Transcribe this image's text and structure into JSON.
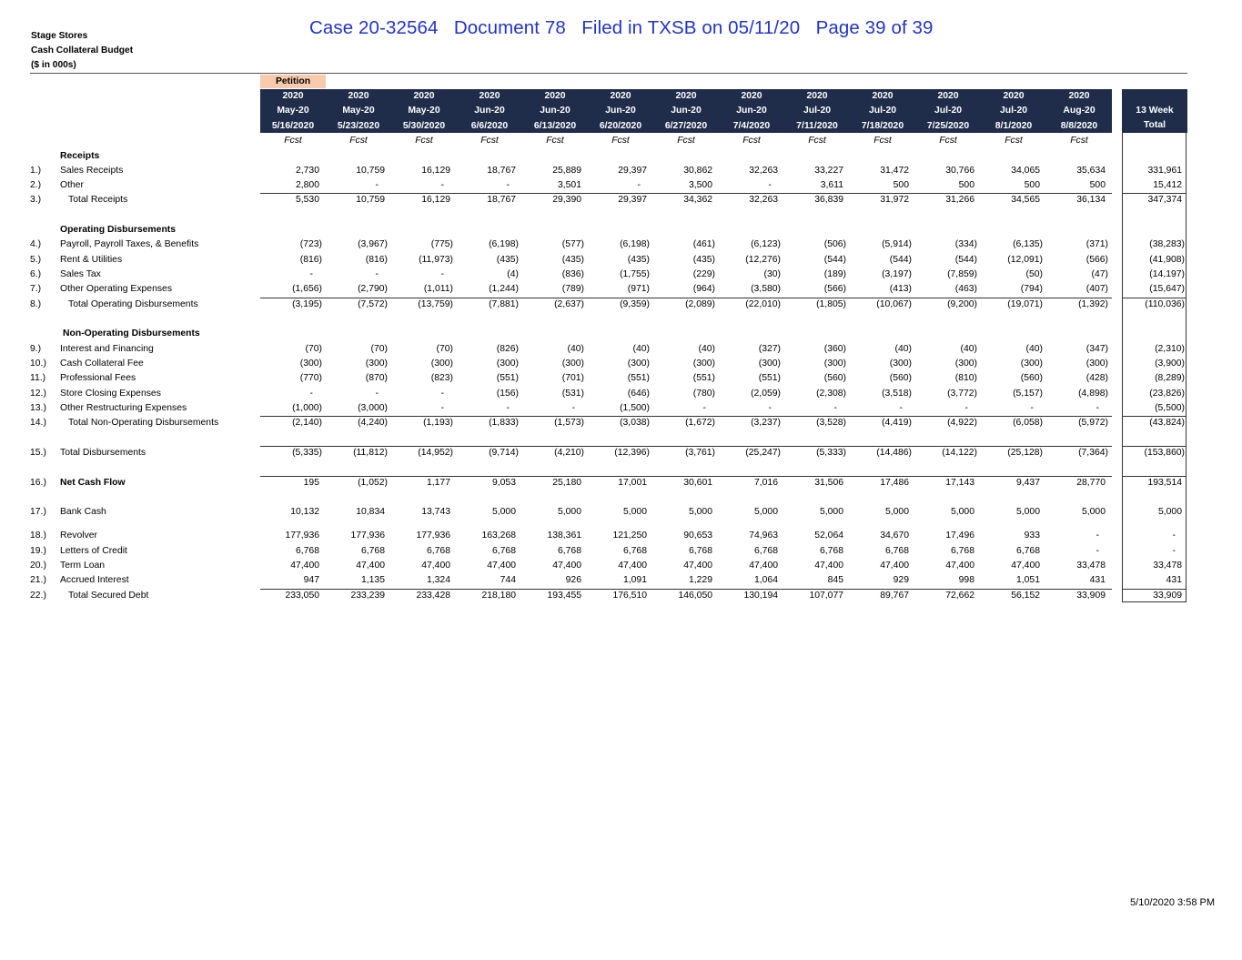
{
  "stamp": "Case 20-32564   Document 78   Filed in TXSB on 05/11/20   Page 39 of 39",
  "title": {
    "company": "Stage Stores",
    "report": "Cash Collateral Budget",
    "units": "($ in 000s)"
  },
  "petition_label": "Petition",
  "header_color": "#1f2d4b",
  "petition_color": "#f8cbad",
  "columns": [
    {
      "year": "2020",
      "month": "May-20",
      "date": "5/16/2020",
      "type": "Fcst"
    },
    {
      "year": "2020",
      "month": "May-20",
      "date": "5/23/2020",
      "type": "Fcst"
    },
    {
      "year": "2020",
      "month": "May-20",
      "date": "5/30/2020",
      "type": "Fcst"
    },
    {
      "year": "2020",
      "month": "Jun-20",
      "date": "6/6/2020",
      "type": "Fcst"
    },
    {
      "year": "2020",
      "month": "Jun-20",
      "date": "6/13/2020",
      "type": "Fcst"
    },
    {
      "year": "2020",
      "month": "Jun-20",
      "date": "6/20/2020",
      "type": "Fcst"
    },
    {
      "year": "2020",
      "month": "Jun-20",
      "date": "6/27/2020",
      "type": "Fcst"
    },
    {
      "year": "2020",
      "month": "Jun-20",
      "date": "7/4/2020",
      "type": "Fcst"
    },
    {
      "year": "2020",
      "month": "Jul-20",
      "date": "7/11/2020",
      "type": "Fcst"
    },
    {
      "year": "2020",
      "month": "Jul-20",
      "date": "7/18/2020",
      "type": "Fcst"
    },
    {
      "year": "2020",
      "month": "Jul-20",
      "date": "7/25/2020",
      "type": "Fcst"
    },
    {
      "year": "2020",
      "month": "Jul-20",
      "date": "8/1/2020",
      "type": "Fcst"
    },
    {
      "year": "2020",
      "month": "Aug-20",
      "date": "8/8/2020",
      "type": "Fcst"
    }
  ],
  "total_header": {
    "line1": "13 Week",
    "line2": "Total"
  },
  "rows": [
    {
      "kind": "section",
      "label": "Receipts"
    },
    {
      "num": "1.)",
      "label": "Sales Receipts",
      "values": [
        "2,730",
        "10,759",
        "16,129",
        "18,767",
        "25,889",
        "29,397",
        "30,862",
        "32,263",
        "33,227",
        "31,472",
        "30,766",
        "34,065",
        "35,634"
      ],
      "total": "331,961"
    },
    {
      "num": "2.)",
      "label": "Other",
      "values": [
        "2,800",
        "-",
        "-",
        "-",
        "3,501",
        "-",
        "3,500",
        "-",
        "3,611",
        "500",
        "500",
        "500",
        "500"
      ],
      "total": "15,412"
    },
    {
      "num": "3.)",
      "label": "Total Receipts",
      "indent": true,
      "rule": true,
      "values": [
        "5,530",
        "10,759",
        "16,129",
        "18,767",
        "29,390",
        "29,397",
        "34,362",
        "32,263",
        "36,839",
        "31,972",
        "31,266",
        "34,565",
        "36,134"
      ],
      "total": "347,374"
    },
    {
      "kind": "blank"
    },
    {
      "kind": "section",
      "label": "Operating Disbursements"
    },
    {
      "num": "4.)",
      "label": "Payroll, Payroll Taxes, & Benefits",
      "values": [
        "(723)",
        "(3,967)",
        "(775)",
        "(6,198)",
        "(577)",
        "(6,198)",
        "(461)",
        "(6,123)",
        "(506)",
        "(5,914)",
        "(334)",
        "(6,135)",
        "(371)"
      ],
      "total": "(38,283)"
    },
    {
      "num": "5.)",
      "label": "Rent & Utilities",
      "values": [
        "(816)",
        "(816)",
        "(11,973)",
        "(435)",
        "(435)",
        "(435)",
        "(435)",
        "(12,276)",
        "(544)",
        "(544)",
        "(544)",
        "(12,091)",
        "(566)"
      ],
      "total": "(41,908)"
    },
    {
      "num": "6.)",
      "label": "Sales Tax",
      "values": [
        "-",
        "-",
        "-",
        "(4)",
        "(836)",
        "(1,755)",
        "(229)",
        "(30)",
        "(189)",
        "(3,197)",
        "(7,859)",
        "(50)",
        "(47)"
      ],
      "total": "(14,197)"
    },
    {
      "num": "7.)",
      "label": "Other Operating Expenses",
      "values": [
        "(1,656)",
        "(2,790)",
        "(1,011)",
        "(1,244)",
        "(789)",
        "(971)",
        "(964)",
        "(3,580)",
        "(566)",
        "(413)",
        "(463)",
        "(794)",
        "(407)"
      ],
      "total": "(15,647)"
    },
    {
      "num": "8.)",
      "label": "Total Operating Disbursements",
      "indent": true,
      "rule": true,
      "values": [
        "(3,195)",
        "(7,572)",
        "(13,759)",
        "(7,881)",
        "(2,637)",
        "(9,359)",
        "(2,089)",
        "(22,010)",
        "(1,805)",
        "(10,067)",
        "(9,200)",
        "(19,071)",
        "(1,392)"
      ],
      "total": "(110,036)"
    },
    {
      "kind": "blank"
    },
    {
      "kind": "section",
      "label": "Non-Operating Disbursements"
    },
    {
      "num": "9.)",
      "label": "Interest and Financing",
      "values": [
        "(70)",
        "(70)",
        "(70)",
        "(826)",
        "(40)",
        "(40)",
        "(40)",
        "(327)",
        "(360)",
        "(40)",
        "(40)",
        "(40)",
        "(347)"
      ],
      "total": "(2,310)"
    },
    {
      "num": "10.)",
      "label": "Cash Collateral Fee",
      "values": [
        "(300)",
        "(300)",
        "(300)",
        "(300)",
        "(300)",
        "(300)",
        "(300)",
        "(300)",
        "(300)",
        "(300)",
        "(300)",
        "(300)",
        "(300)"
      ],
      "total": "(3,900)"
    },
    {
      "num": "11.)",
      "label": "Professional Fees",
      "values": [
        "(770)",
        "(870)",
        "(823)",
        "(551)",
        "(701)",
        "(551)",
        "(551)",
        "(551)",
        "(560)",
        "(560)",
        "(810)",
        "(560)",
        "(428)"
      ],
      "total": "(8,289)"
    },
    {
      "num": "12.)",
      "label": "Store Closing Expenses",
      "values": [
        "-",
        "-",
        "-",
        "(156)",
        "(531)",
        "(646)",
        "(780)",
        "(2,059)",
        "(2,308)",
        "(3,518)",
        "(3,772)",
        "(5,157)",
        "(4,898)"
      ],
      "total": "(23,826)"
    },
    {
      "num": "13.)",
      "label": "Other Restructuring Expenses",
      "values": [
        "(1,000)",
        "(3,000)",
        "-",
        "-",
        "-",
        "(1,500)",
        "-",
        "-",
        "-",
        "-",
        "-",
        "-",
        "-"
      ],
      "total": "(5,500)"
    },
    {
      "num": "14.)",
      "label": "Total Non-Operating Disbursements",
      "indent": true,
      "rule": true,
      "values": [
        "(2,140)",
        "(4,240)",
        "(1,193)",
        "(1,833)",
        "(1,573)",
        "(3,038)",
        "(1,672)",
        "(3,237)",
        "(3,528)",
        "(4,419)",
        "(4,922)",
        "(6,058)",
        "(5,972)"
      ],
      "total": "(43,824)"
    },
    {
      "kind": "blank"
    },
    {
      "num": "15.)",
      "label": "Total Disbursements",
      "rule": true,
      "values": [
        "(5,335)",
        "(11,812)",
        "(14,952)",
        "(9,714)",
        "(4,210)",
        "(12,396)",
        "(3,761)",
        "(25,247)",
        "(5,333)",
        "(14,486)",
        "(14,122)",
        "(25,128)",
        "(7,364)"
      ],
      "total": "(153,860)"
    },
    {
      "kind": "blank"
    },
    {
      "num": "16.)",
      "label": "Net Cash Flow",
      "bold": true,
      "rule": true,
      "values": [
        "195",
        "(1,052)",
        "1,177",
        "9,053",
        "25,180",
        "17,001",
        "30,601",
        "7,016",
        "31,506",
        "17,486",
        "17,143",
        "9,437",
        "28,770"
      ],
      "total": "193,514"
    },
    {
      "kind": "blank"
    },
    {
      "num": "17.)",
      "label": "Bank Cash",
      "values": [
        "10,132",
        "10,834",
        "13,743",
        "5,000",
        "5,000",
        "5,000",
        "5,000",
        "5,000",
        "5,000",
        "5,000",
        "5,000",
        "5,000",
        "5,000"
      ],
      "total": "5,000"
    },
    {
      "kind": "spacer"
    },
    {
      "num": "18.)",
      "label": "Revolver",
      "values": [
        "177,936",
        "177,936",
        "177,936",
        "163,268",
        "138,361",
        "121,250",
        "90,653",
        "74,963",
        "52,064",
        "34,670",
        "17,496",
        "933",
        "-"
      ],
      "total": "-"
    },
    {
      "num": "19.)",
      "label": "Letters of Credit",
      "values": [
        "6,768",
        "6,768",
        "6,768",
        "6,768",
        "6,768",
        "6,768",
        "6,768",
        "6,768",
        "6,768",
        "6,768",
        "6,768",
        "6,768",
        "-"
      ],
      "total": "-"
    },
    {
      "num": "20.)",
      "label": "Term Loan",
      "values": [
        "47,400",
        "47,400",
        "47,400",
        "47,400",
        "47,400",
        "47,400",
        "47,400",
        "47,400",
        "47,400",
        "47,400",
        "47,400",
        "47,400",
        "33,478"
      ],
      "total": "33,478"
    },
    {
      "num": "21.)",
      "label": "Accrued Interest",
      "values": [
        "947",
        "1,135",
        "1,324",
        "744",
        "926",
        "1,091",
        "1,229",
        "1,064",
        "845",
        "929",
        "998",
        "1,051",
        "431"
      ],
      "total": "431"
    },
    {
      "num": "22.)",
      "label": "Total Secured Debt",
      "indent": true,
      "rule": true,
      "values": [
        "233,050",
        "233,239",
        "233,428",
        "218,180",
        "193,455",
        "176,510",
        "146,050",
        "130,194",
        "107,077",
        "89,767",
        "72,662",
        "56,152",
        "33,909"
      ],
      "total": "33,909"
    }
  ],
  "footer_timestamp": "5/10/2020 3:58 PM"
}
